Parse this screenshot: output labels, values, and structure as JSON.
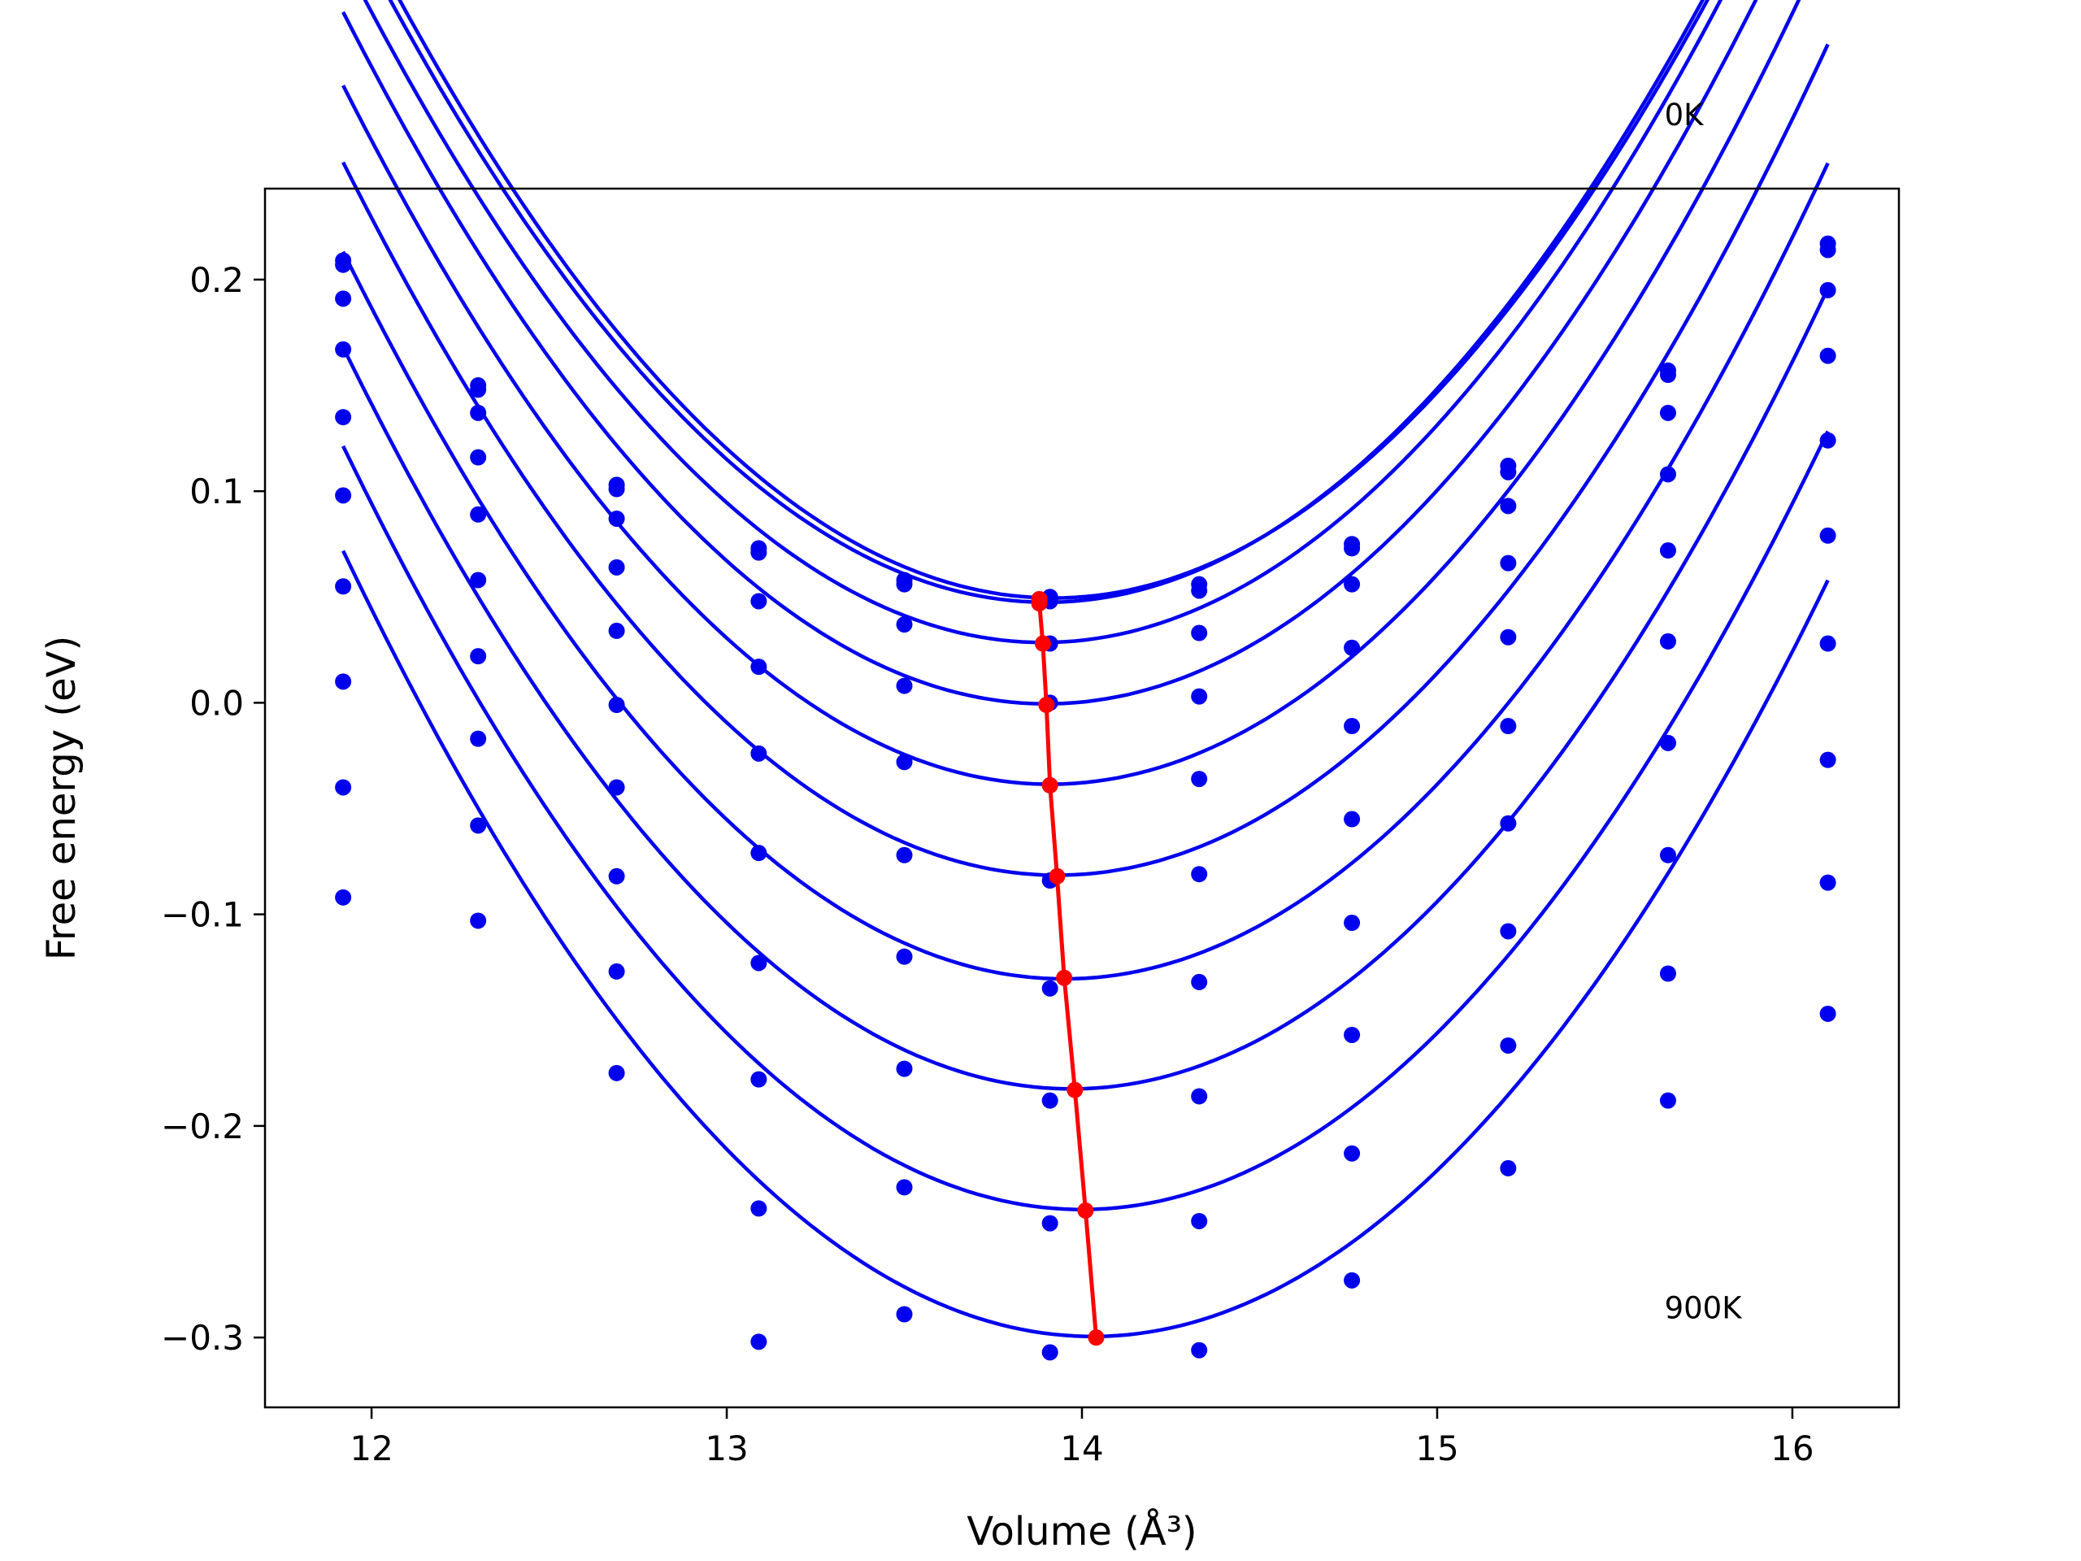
{
  "chart_data": {
    "type": "scatter",
    "title": "",
    "xlabel": "Volume (Å³)",
    "ylabel": "Free energy (eV)",
    "xlim": [
      11.7,
      16.3
    ],
    "ylim": [
      -0.333,
      0.243
    ],
    "x_ticks": [
      {
        "value": 12,
        "label": "12"
      },
      {
        "value": 13,
        "label": "13"
      },
      {
        "value": 14,
        "label": "14"
      },
      {
        "value": 15,
        "label": "15"
      },
      {
        "value": 16,
        "label": "16"
      }
    ],
    "y_ticks": [
      {
        "value": 0.2,
        "label": "0.2"
      },
      {
        "value": 0.1,
        "label": "0.1"
      },
      {
        "value": 0.0,
        "label": "0.0"
      },
      {
        "value": -0.1,
        "label": "−0.1"
      },
      {
        "value": -0.2,
        "label": "−0.2"
      },
      {
        "value": -0.3,
        "label": "−0.3"
      }
    ],
    "grid": false,
    "annotations": [
      {
        "text": "0K",
        "x": 15.64,
        "y": 0.273
      },
      {
        "text": "900K",
        "x": 15.64,
        "y": -0.291
      }
    ],
    "x": [
      11.92,
      12.3,
      12.69,
      13.09,
      13.5,
      13.91,
      14.33,
      14.76,
      15.2,
      15.65,
      16.1
    ],
    "series_color": "#0000ee",
    "fit_color": "#0000ee",
    "minimum_color": "#ff0000",
    "series": [
      {
        "values": [
          0.209,
          0.15,
          0.103,
          0.073,
          0.058,
          0.05,
          0.056,
          0.075,
          0.112,
          0.157,
          0.217
        ],
        "fit": {
          "v0": 13.92,
          "e0": 0.0495,
          "k": 0.0834
        }
      },
      {
        "values": [
          0.207,
          0.148,
          0.101,
          0.071,
          0.056,
          0.048,
          0.053,
          0.073,
          0.109,
          0.155,
          0.214
        ],
        "fit": {
          "v0": 13.9,
          "e0": 0.0475,
          "k": 0.0834
        }
      },
      {
        "values": [
          0.191,
          0.137,
          0.087,
          0.048,
          0.037,
          0.028,
          0.033,
          0.056,
          0.093,
          0.137,
          0.195
        ],
        "fit": {
          "v0": 13.89,
          "e0": 0.0285,
          "k": 0.0834
        }
      },
      {
        "values": [
          0.167,
          0.116,
          0.064,
          0.017,
          0.008,
          0.0,
          0.003,
          0.026,
          0.066,
          0.108,
          0.164
        ],
        "fit": {
          "v0": 13.9,
          "e0": -0.0005,
          "k": 0.0834
        }
      },
      {
        "values": [
          0.135,
          0.089,
          0.034,
          -0.024,
          -0.028,
          -0.039,
          -0.036,
          -0.011,
          0.031,
          0.072,
          0.124
        ],
        "fit": {
          "v0": 13.91,
          "e0": -0.0385,
          "k": 0.0834
        }
      },
      {
        "values": [
          0.098,
          0.058,
          -0.001,
          -0.071,
          -0.072,
          -0.084,
          -0.081,
          -0.055,
          -0.011,
          0.029,
          0.079
        ],
        "fit": {
          "v0": 13.93,
          "e0": -0.0815,
          "k": 0.0834
        }
      },
      {
        "values": [
          0.055,
          0.022,
          -0.04,
          -0.123,
          -0.12,
          -0.135,
          -0.132,
          -0.104,
          -0.057,
          -0.019,
          0.028
        ],
        "fit": {
          "v0": 13.95,
          "e0": -0.1305,
          "k": 0.0834
        }
      },
      {
        "values": [
          0.01,
          -0.017,
          -0.082,
          -0.178,
          -0.173,
          -0.188,
          -0.186,
          -0.157,
          -0.108,
          -0.072,
          -0.027
        ],
        "fit": {
          "v0": 13.97,
          "e0": -0.1825,
          "k": 0.0834
        }
      },
      {
        "values": [
          -0.04,
          -0.058,
          -0.127,
          -0.239,
          -0.229,
          -0.246,
          -0.245,
          -0.213,
          -0.162,
          -0.128,
          -0.085
        ],
        "fit": {
          "v0": 14.0,
          "e0": -0.2395,
          "k": 0.0834
        }
      },
      {
        "values": [
          -0.092,
          -0.103,
          -0.175,
          -0.302,
          -0.289,
          -0.307,
          -0.306,
          -0.273,
          -0.22,
          -0.188,
          -0.147
        ],
        "fit": {
          "v0": 14.03,
          "e0": -0.2995,
          "k": 0.0834
        }
      }
    ],
    "minima": {
      "x": [
        13.88,
        13.88,
        13.89,
        13.9,
        13.91,
        13.93,
        13.95,
        13.98,
        14.01,
        14.04
      ],
      "y": [
        0.049,
        0.047,
        0.028,
        -0.001,
        -0.039,
        -0.082,
        -0.13,
        -0.183,
        -0.24,
        -0.3
      ]
    }
  }
}
